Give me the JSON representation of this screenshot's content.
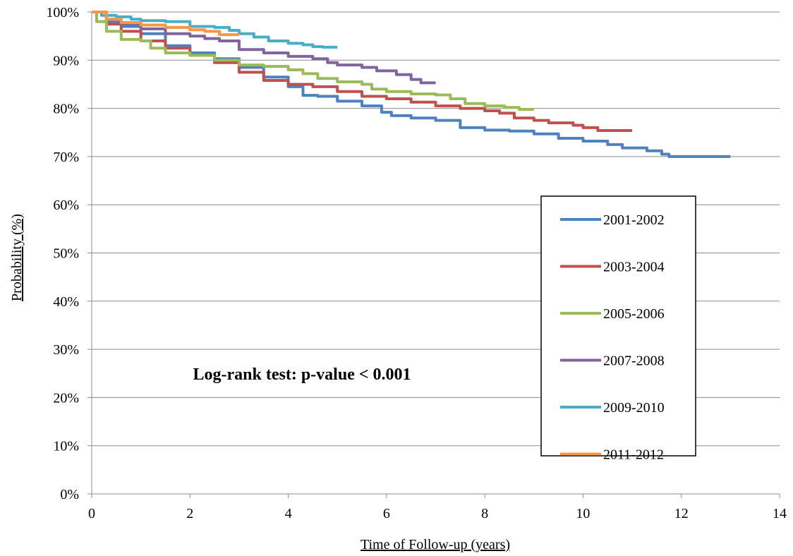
{
  "chart_data": {
    "type": "line",
    "title": "",
    "xlabel": "Time of Follow-up (years)",
    "ylabel": "Probability (%)",
    "xlim": [
      0,
      14
    ],
    "ylim": [
      0,
      100
    ],
    "x_ticks": [
      0,
      2,
      4,
      6,
      8,
      10,
      12,
      14
    ],
    "y_ticks": [
      0,
      10,
      20,
      30,
      40,
      50,
      60,
      70,
      80,
      90,
      100
    ],
    "x_tick_labels": [
      "0",
      "2",
      "4",
      "6",
      "8",
      "10",
      "12",
      "14"
    ],
    "y_tick_labels": [
      "0%",
      "10%",
      "20%",
      "30%",
      "40%",
      "50%",
      "60%",
      "70%",
      "80%",
      "90%",
      "100%"
    ],
    "grid": "horizontal",
    "legend_position": "right",
    "annotation": "Log-rank test: p-value < 0.001",
    "series": [
      {
        "name": "2001-2002",
        "color": "#4F81BD",
        "points": [
          [
            0,
            100
          ],
          [
            0.3,
            98
          ],
          [
            0.6,
            97
          ],
          [
            1,
            95.5
          ],
          [
            1.5,
            93
          ],
          [
            2,
            91.5
          ],
          [
            2.5,
            90.3
          ],
          [
            3,
            88.5
          ],
          [
            3.5,
            86.5
          ],
          [
            4,
            84.5
          ],
          [
            4.3,
            82.7
          ],
          [
            4.6,
            82.5
          ],
          [
            5,
            81.5
          ],
          [
            5.5,
            80.5
          ],
          [
            5.9,
            79.2
          ],
          [
            6.1,
            78.5
          ],
          [
            6.5,
            78
          ],
          [
            7,
            77.5
          ],
          [
            7.5,
            76
          ],
          [
            8,
            75.5
          ],
          [
            8.5,
            75.3
          ],
          [
            9,
            74.7
          ],
          [
            9.5,
            73.8
          ],
          [
            10,
            73.2
          ],
          [
            10.5,
            72.5
          ],
          [
            10.8,
            71.8
          ],
          [
            11.3,
            71.2
          ],
          [
            11.6,
            70.5
          ],
          [
            11.75,
            70
          ],
          [
            13,
            70
          ]
        ]
      },
      {
        "name": "2003-2004",
        "color": "#C0504D",
        "points": [
          [
            0,
            100
          ],
          [
            0.3,
            97.5
          ],
          [
            0.6,
            96
          ],
          [
            1,
            94
          ],
          [
            1.5,
            92.5
          ],
          [
            2,
            91
          ],
          [
            2.5,
            89.5
          ],
          [
            3,
            87.5
          ],
          [
            3.5,
            85.8
          ],
          [
            4,
            85
          ],
          [
            4.5,
            84.5
          ],
          [
            5,
            83.5
          ],
          [
            5.5,
            82.5
          ],
          [
            6,
            82
          ],
          [
            6.5,
            81.3
          ],
          [
            7,
            80.5
          ],
          [
            7.5,
            80
          ],
          [
            8,
            79.5
          ],
          [
            8.3,
            79
          ],
          [
            8.6,
            78
          ],
          [
            9,
            77.5
          ],
          [
            9.3,
            77
          ],
          [
            9.8,
            76.5
          ],
          [
            10,
            76
          ],
          [
            10.3,
            75.4
          ],
          [
            11,
            75.4
          ]
        ]
      },
      {
        "name": "2005-2006",
        "color": "#9BBB59",
        "points": [
          [
            0,
            100
          ],
          [
            0.1,
            98
          ],
          [
            0.3,
            96
          ],
          [
            0.6,
            94.3
          ],
          [
            1,
            94
          ],
          [
            1.2,
            92.5
          ],
          [
            1.5,
            91.5
          ],
          [
            2,
            91
          ],
          [
            2.5,
            90
          ],
          [
            3,
            89
          ],
          [
            3.5,
            88.7
          ],
          [
            4,
            88
          ],
          [
            4.3,
            87.2
          ],
          [
            4.6,
            86.2
          ],
          [
            5,
            85.5
          ],
          [
            5.5,
            85
          ],
          [
            5.7,
            84
          ],
          [
            6,
            83.5
          ],
          [
            6.5,
            83
          ],
          [
            7,
            82.8
          ],
          [
            7.3,
            82
          ],
          [
            7.6,
            81
          ],
          [
            8,
            80.5
          ],
          [
            8.4,
            80.2
          ],
          [
            8.7,
            79.8
          ],
          [
            9,
            79.8
          ]
        ]
      },
      {
        "name": "2007-2008",
        "color": "#8064A2",
        "points": [
          [
            0,
            100
          ],
          [
            0.3,
            98.5
          ],
          [
            0.6,
            97.5
          ],
          [
            1,
            96.5
          ],
          [
            1.5,
            95.5
          ],
          [
            2,
            95
          ],
          [
            2.3,
            94.5
          ],
          [
            2.6,
            94
          ],
          [
            3,
            92.2
          ],
          [
            3.5,
            91.5
          ],
          [
            4,
            90.8
          ],
          [
            4.5,
            90.3
          ],
          [
            4.8,
            89.5
          ],
          [
            5,
            89
          ],
          [
            5.5,
            88.5
          ],
          [
            5.8,
            87.8
          ],
          [
            6.2,
            87
          ],
          [
            6.5,
            86
          ],
          [
            6.7,
            85.3
          ],
          [
            7,
            85.3
          ]
        ]
      },
      {
        "name": "2009-2010",
        "color": "#4BACC6",
        "points": [
          [
            0,
            100
          ],
          [
            0.2,
            99.3
          ],
          [
            0.5,
            99
          ],
          [
            0.8,
            98.5
          ],
          [
            1,
            98.2
          ],
          [
            1.5,
            98
          ],
          [
            2,
            97
          ],
          [
            2.5,
            96.8
          ],
          [
            2.8,
            96.2
          ],
          [
            3,
            95.5
          ],
          [
            3.3,
            94.8
          ],
          [
            3.6,
            94
          ],
          [
            4,
            93.5
          ],
          [
            4.3,
            93.2
          ],
          [
            4.5,
            92.8
          ],
          [
            4.7,
            92.7
          ],
          [
            5,
            92.7
          ]
        ]
      },
      {
        "name": "2011-2012",
        "color": "#F79646",
        "points": [
          [
            0,
            100
          ],
          [
            0.3,
            98.5
          ],
          [
            0.6,
            97.8
          ],
          [
            1,
            97.3
          ],
          [
            1.5,
            96.8
          ],
          [
            2,
            96.3
          ],
          [
            2.3,
            96
          ],
          [
            2.6,
            95.3
          ],
          [
            3,
            95.2
          ]
        ]
      }
    ]
  }
}
